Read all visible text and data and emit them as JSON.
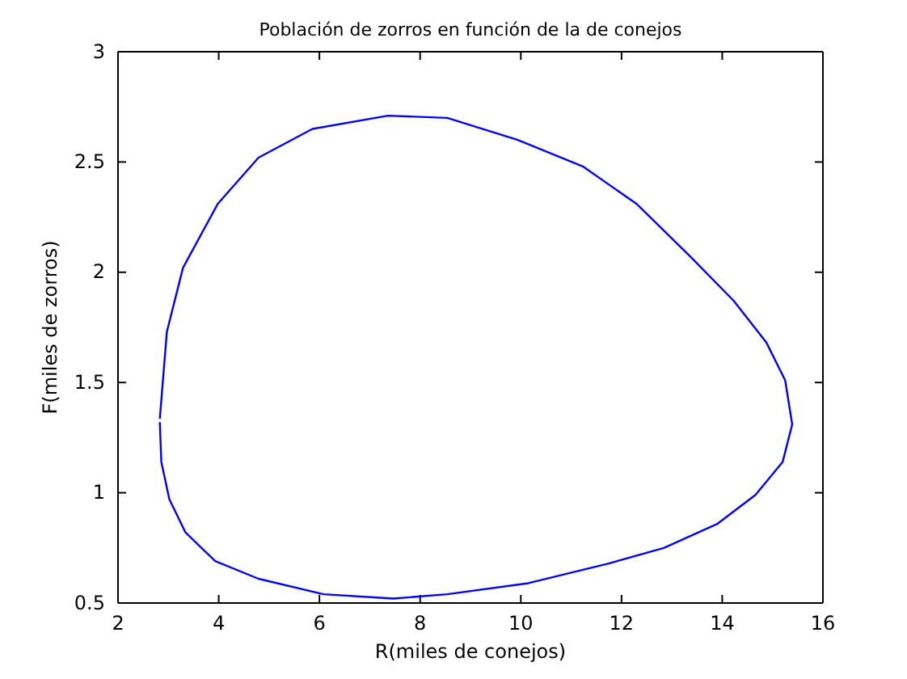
{
  "chart_data": {
    "type": "line",
    "title": "Población de zorros en función de la de conejos",
    "xlabel": "R(miles de conejos)",
    "ylabel": "F(miles de zorros)",
    "xlim": [
      2,
      16
    ],
    "xticks": [
      2,
      4,
      6,
      8,
      10,
      12,
      14,
      16
    ],
    "ylim": [
      0.5,
      3
    ],
    "yticks": [
      0.5,
      1,
      1.5,
      2,
      2.5,
      3
    ],
    "grid": false,
    "marker": "none",
    "line_style": "solid",
    "series": [
      {
        "color": "#0000ff",
        "x": [
          2.83,
          2.97,
          3.29,
          3.98,
          4.79,
          5.86,
          7.36,
          8.54,
          9.94,
          11.23,
          12.3,
          13.37,
          14.23,
          14.88,
          15.25,
          15.39,
          15.2,
          14.66,
          13.91,
          12.84,
          11.76,
          10.15,
          8.54,
          7.47,
          6.08,
          4.79,
          3.93,
          3.34,
          3.02,
          2.86,
          2.83
        ],
        "values": [
          1.335,
          1.73,
          2.02,
          2.31,
          2.52,
          2.65,
          2.71,
          2.7,
          2.6,
          2.48,
          2.31,
          2.07,
          1.87,
          1.68,
          1.51,
          1.31,
          1.14,
          0.99,
          0.86,
          0.75,
          0.68,
          0.59,
          0.54,
          0.52,
          0.54,
          0.61,
          0.69,
          0.82,
          0.97,
          1.14,
          1.32
        ]
      }
    ]
  }
}
